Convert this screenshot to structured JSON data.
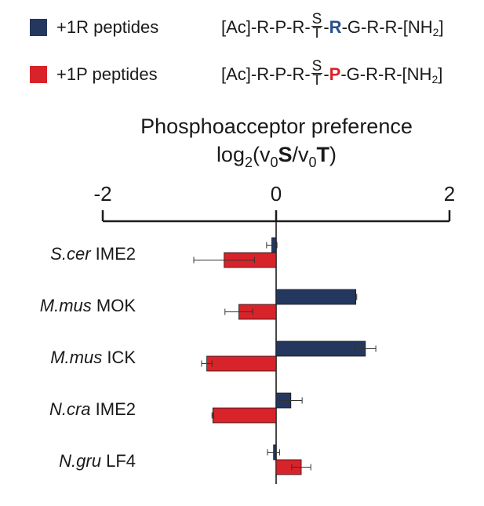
{
  "legend": {
    "items": [
      {
        "label": "+1R peptides",
        "color": "#24375f",
        "seq_prefix": "[Ac]-R-P-R-",
        "site_top": "S",
        "site_bottom": "T",
        "dash": "-",
        "residue": "R",
        "residue_color": "#2a4f8f",
        "seq_suffix": "-G-R-R-[NH",
        "seq_sub": "2",
        "seq_end": "]"
      },
      {
        "label": "+1P peptides",
        "color": "#d8232a",
        "seq_prefix": "[Ac]-R-P-R-",
        "site_top": "S",
        "site_bottom": "T",
        "dash": "-",
        "residue": "P",
        "residue_color": "#d8232a",
        "seq_suffix": "-G-R-R-[NH",
        "seq_sub": "2",
        "seq_end": "]"
      }
    ]
  },
  "title": {
    "line1": "Phosphoacceptor preference",
    "l_log": "log",
    "l_log_sub": "2",
    "l_open": "(v",
    "l_v_sub1": "0",
    "l_S": "S",
    "l_slash": "/v",
    "l_v_sub2": "0",
    "l_T": "T",
    "l_close": ")"
  },
  "chart_data": {
    "type": "bar",
    "orientation": "horizontal",
    "xlim": [
      -2,
      2
    ],
    "xticks": [
      -2,
      0,
      2
    ],
    "x_tick_labels": [
      "-2",
      "0",
      "2"
    ],
    "categories": [
      {
        "italic": "S.cer",
        "rest": " IME2"
      },
      {
        "italic": "M.mus",
        "rest": " MOK"
      },
      {
        "italic": "M.mus",
        "rest": " ICK"
      },
      {
        "italic": "N.cra",
        "rest": " IME2"
      },
      {
        "italic": "N.gru",
        "rest": " LF4"
      }
    ],
    "series": [
      {
        "color": "#24375f",
        "values": [
          -0.05,
          0.92,
          1.03,
          0.17,
          -0.03
        ],
        "errors": [
          0.06,
          0.01,
          0.12,
          0.13,
          0.07
        ]
      },
      {
        "color": "#d8232a",
        "values": [
          -0.6,
          -0.43,
          -0.8,
          -0.73,
          0.29
        ],
        "errors": [
          0.35,
          0.16,
          0.06,
          0.01,
          0.11
        ]
      }
    ]
  }
}
